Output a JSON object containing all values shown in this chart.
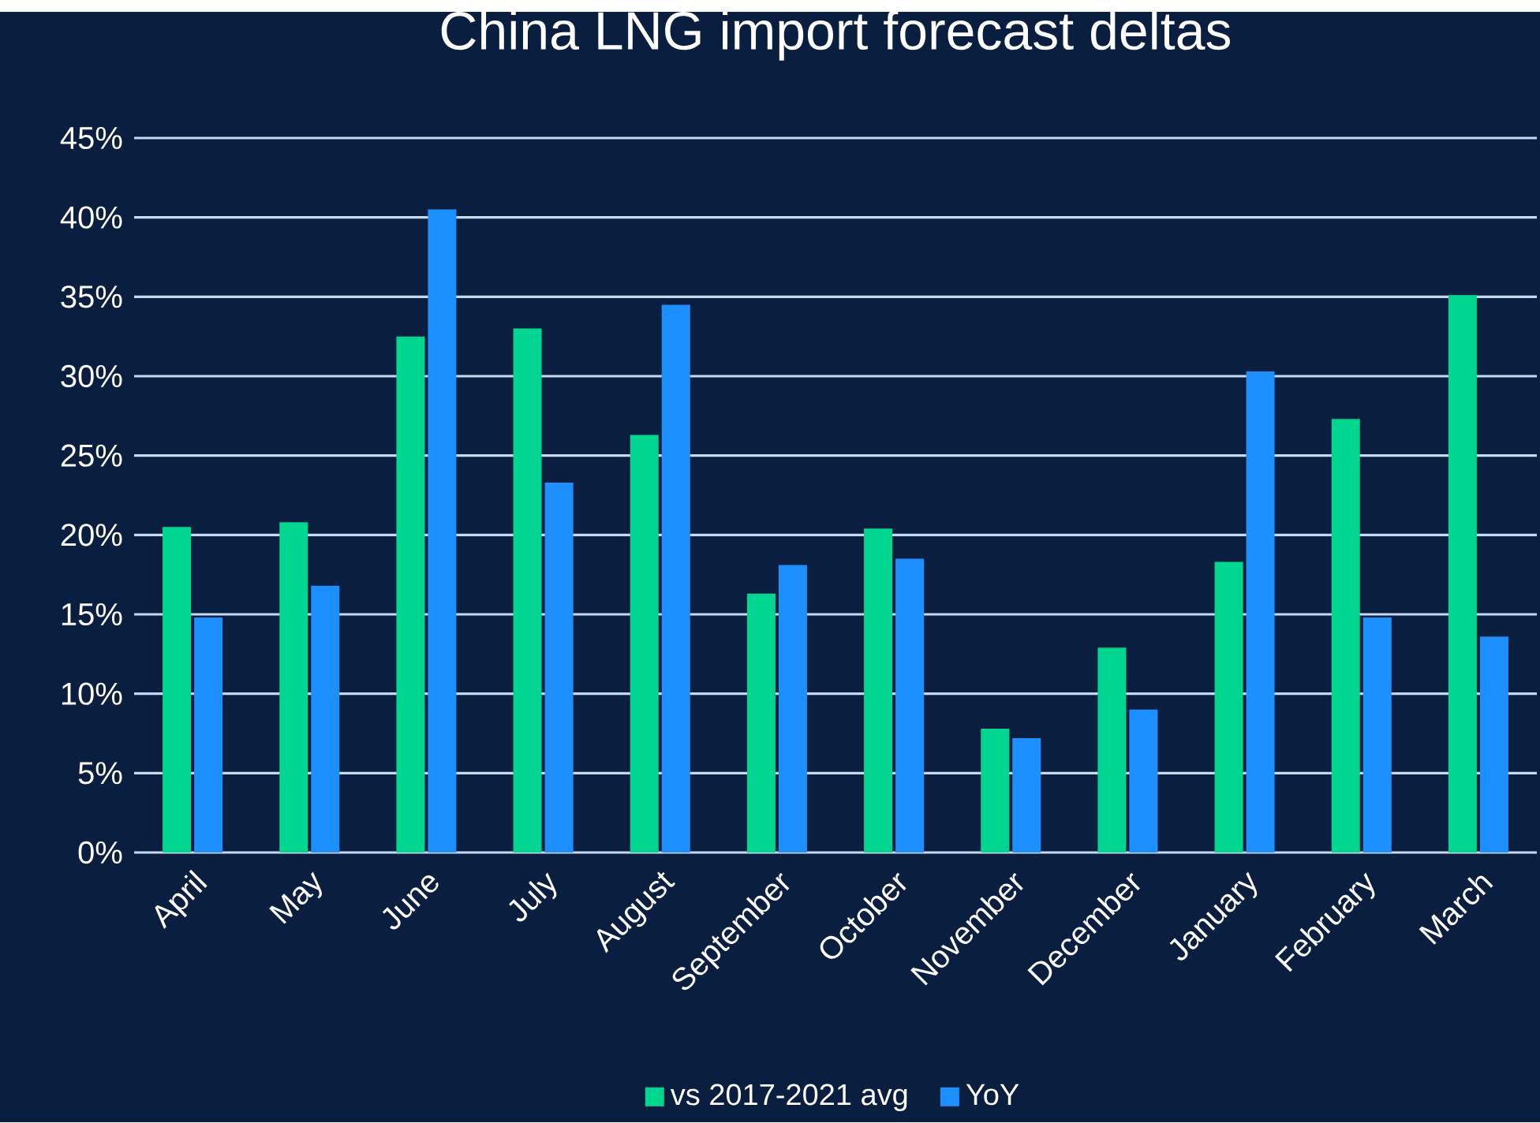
{
  "chart_data": {
    "type": "bar",
    "title": "China LNG import forecast deltas",
    "categories": [
      "April",
      "May",
      "June",
      "July",
      "August",
      "September",
      "October",
      "November",
      "December",
      "January",
      "February",
      "March"
    ],
    "series": [
      {
        "name": "vs 2017-2021 avg",
        "color": "#00d68f",
        "values": [
          20.5,
          20.8,
          32.5,
          33.0,
          26.3,
          16.3,
          20.4,
          7.8,
          12.9,
          18.3,
          27.3,
          35.1
        ]
      },
      {
        "name": "YoY",
        "color": "#1e8fff",
        "values": [
          14.8,
          16.8,
          40.5,
          23.3,
          34.5,
          18.1,
          18.5,
          7.2,
          9.0,
          30.3,
          14.8,
          13.6
        ]
      }
    ],
    "ylim": [
      0,
      45
    ],
    "yticks": [
      {
        "value": 0,
        "label": "0%"
      },
      {
        "value": 5,
        "label": "5%"
      },
      {
        "value": 10,
        "label": "10%"
      },
      {
        "value": 15,
        "label": "15%"
      },
      {
        "value": 20,
        "label": "20%"
      },
      {
        "value": 25,
        "label": "25%"
      },
      {
        "value": 30,
        "label": "30%"
      },
      {
        "value": 35,
        "label": "35%"
      },
      {
        "value": 40,
        "label": "40%"
      },
      {
        "value": 45,
        "label": "45%"
      }
    ],
    "grid": "y",
    "legend": "bottom"
  }
}
